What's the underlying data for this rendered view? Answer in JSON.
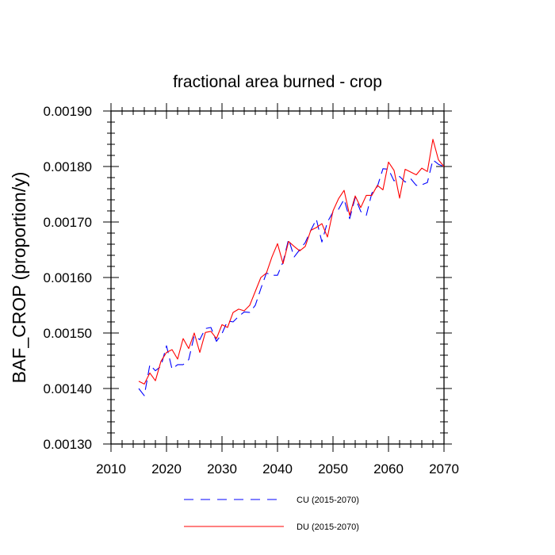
{
  "chart_data": {
    "type": "line",
    "title": "fractional area burned - crop",
    "xlabel": "",
    "ylabel": "BAF_CROP  (proportion/y)",
    "xlim": [
      2010,
      2070
    ],
    "ylim": [
      0.0013,
      0.0019
    ],
    "x_ticks": [
      "2010",
      "2020",
      "2030",
      "2040",
      "2050",
      "2060",
      "2070"
    ],
    "y_ticks": [
      "0.00130",
      "0.00140",
      "0.00150",
      "0.00160",
      "0.00170",
      "0.00180",
      "0.00190"
    ],
    "grid": false,
    "legend_position": "bottom",
    "x": [
      2015,
      2016,
      2017,
      2018,
      2019,
      2020,
      2021,
      2022,
      2023,
      2024,
      2025,
      2026,
      2027,
      2028,
      2029,
      2030,
      2031,
      2032,
      2033,
      2034,
      2035,
      2036,
      2037,
      2038,
      2039,
      2040,
      2041,
      2042,
      2043,
      2044,
      2045,
      2046,
      2047,
      2048,
      2049,
      2050,
      2051,
      2052,
      2053,
      2054,
      2055,
      2056,
      2057,
      2058,
      2059,
      2060,
      2061,
      2062,
      2063,
      2064,
      2065,
      2066,
      2067,
      2068,
      2069,
      2070
    ],
    "series": [
      {
        "name": "CU (2015-2070)",
        "color": "#0000ff",
        "dash": "dashed",
        "values": [
          0.0014,
          0.001387,
          0.001443,
          0.001432,
          0.00144,
          0.001477,
          0.001435,
          0.001443,
          0.001443,
          0.001452,
          0.001495,
          0.001488,
          0.001508,
          0.00151,
          0.001485,
          0.001499,
          0.001522,
          0.00152,
          0.00153,
          0.001538,
          0.001537,
          0.00155,
          0.00158,
          0.001608,
          0.001604,
          0.001604,
          0.001628,
          0.001669,
          0.001637,
          0.00165,
          0.001663,
          0.001685,
          0.001705,
          0.001664,
          0.0017,
          0.001718,
          0.001723,
          0.001741,
          0.001706,
          0.001744,
          0.001719,
          0.001712,
          0.001752,
          0.001764,
          0.001796,
          0.001795,
          0.001774,
          0.001782,
          0.001772,
          0.001778,
          0.001766,
          0.001767,
          0.001771,
          0.001812,
          0.001804,
          0.0018
        ]
      },
      {
        "name": "DU (2015-2070)",
        "color": "#ff0000",
        "dash": "solid",
        "values": [
          0.001413,
          0.001408,
          0.001428,
          0.001414,
          0.001449,
          0.001465,
          0.00147,
          0.001453,
          0.00149,
          0.001472,
          0.0015,
          0.001465,
          0.001501,
          0.001503,
          0.00149,
          0.001515,
          0.00151,
          0.001537,
          0.001543,
          0.00154,
          0.00155,
          0.001575,
          0.0016,
          0.001608,
          0.001637,
          0.001661,
          0.001625,
          0.001665,
          0.001656,
          0.001648,
          0.001656,
          0.001685,
          0.00169,
          0.001697,
          0.001673,
          0.00172,
          0.001742,
          0.001757,
          0.001712,
          0.001747,
          0.001726,
          0.001748,
          0.001748,
          0.001766,
          0.001758,
          0.001808,
          0.001793,
          0.001743,
          0.001795,
          0.00179,
          0.001785,
          0.001797,
          0.001791,
          0.001849,
          0.001812,
          0.0018
        ]
      }
    ]
  }
}
